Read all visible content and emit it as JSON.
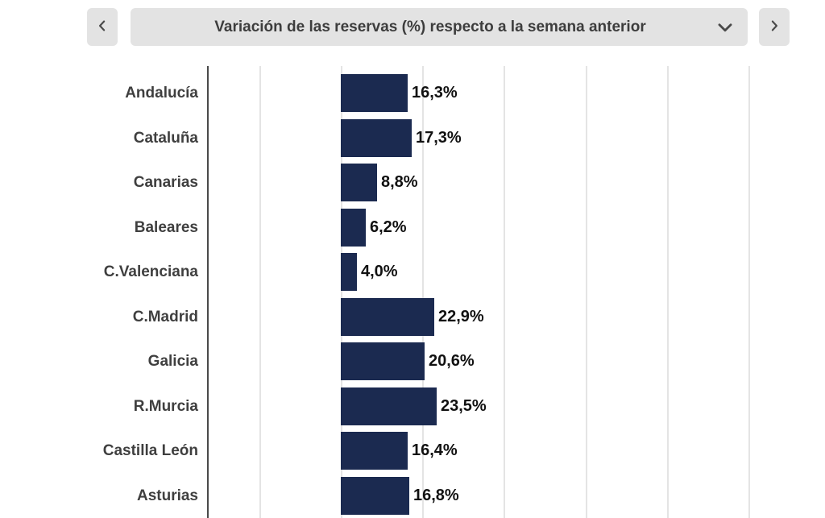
{
  "header": {
    "prev_icon": "chevron-left",
    "next_icon": "chevron-right",
    "dropdown_icon": "chevron-down"
  },
  "colors": {
    "bar": "#1b2a50",
    "control_background": "#e3e3e3",
    "axis_line": "#4a4a4a",
    "gridline": "#e4e4e4",
    "category_label": "#3f3f3f",
    "value_label": "#111111",
    "title_text": "#3d3d3d"
  },
  "chart_data": {
    "type": "bar",
    "orientation": "horizontal",
    "title": "Variación de las reservas (%) respecto a la semana anterior",
    "categories": [
      "Andalucía",
      "Cataluña",
      "Canarias",
      "Baleares",
      "C.Valenciana",
      "C.Madrid",
      "Galicia",
      "R.Murcia",
      "Castilla León",
      "Asturias"
    ],
    "values": [
      16.3,
      17.3,
      8.8,
      6.2,
      4.0,
      22.9,
      20.6,
      23.5,
      16.4,
      16.8
    ],
    "value_labels": [
      "16,3%",
      "17,3%",
      "8,8%",
      "6,2%",
      "4,0%",
      "22,9%",
      "20,6%",
      "23,5%",
      "16,4%",
      "16,8%"
    ],
    "unit": "%",
    "xlabel": "",
    "ylabel": "",
    "grid": true,
    "legend": false,
    "x_axis": {
      "baseline_pct": 0,
      "gridline_interval_pct": 20,
      "tick_labels_visible": false
    }
  }
}
